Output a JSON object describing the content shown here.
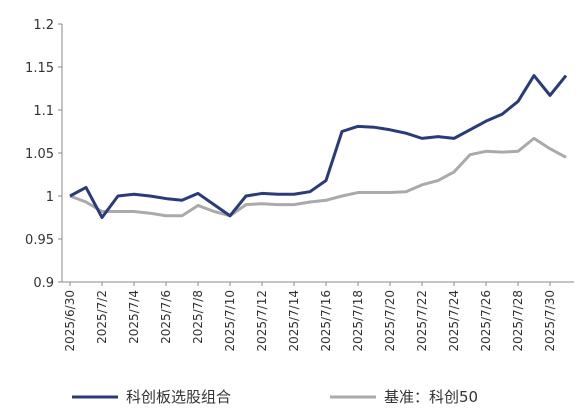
{
  "chart_data": {
    "type": "line",
    "categories": [
      "2025/6/30",
      null,
      "2025/7/2",
      null,
      "2025/7/4",
      null,
      "2025/7/6",
      null,
      "2025/7/8",
      null,
      "2025/7/10",
      null,
      "2025/7/12",
      null,
      "2025/7/14",
      null,
      "2025/7/16",
      null,
      "2025/7/18",
      null,
      "2025/7/20",
      null,
      "2025/7/22",
      null,
      "2025/7/24",
      null,
      "2025/7/26",
      null,
      "2025/7/28",
      null,
      "2025/7/30",
      null
    ],
    "series": [
      {
        "name": "科创板选股组合",
        "color": "#2b3a7a",
        "values": [
          1.0,
          1.01,
          0.975,
          1.0,
          1.002,
          1.0,
          0.997,
          0.995,
          1.003,
          0.99,
          0.977,
          1.0,
          1.003,
          1.002,
          1.002,
          1.005,
          1.018,
          1.075,
          1.081,
          1.08,
          1.077,
          1.073,
          1.067,
          1.069,
          1.067,
          1.077,
          1.087,
          1.095,
          1.11,
          1.14,
          1.117,
          1.14
        ]
      },
      {
        "name": "基准：科创50",
        "color": "#aaaaaa",
        "values": [
          1.0,
          0.993,
          0.982,
          0.982,
          0.982,
          0.98,
          0.977,
          0.977,
          0.989,
          0.982,
          0.977,
          0.99,
          0.991,
          0.99,
          0.99,
          0.993,
          0.995,
          1.0,
          1.004,
          1.004,
          1.004,
          1.005,
          1.013,
          1.018,
          1.028,
          1.048,
          1.052,
          1.051,
          1.052,
          1.067,
          1.055,
          1.045
        ]
      }
    ],
    "ylim": [
      0.9,
      1.2
    ],
    "yticks": [
      0.9,
      0.95,
      1,
      1.05,
      1.1,
      1.15,
      1.2
    ],
    "grid": false,
    "legend": "bottom"
  }
}
